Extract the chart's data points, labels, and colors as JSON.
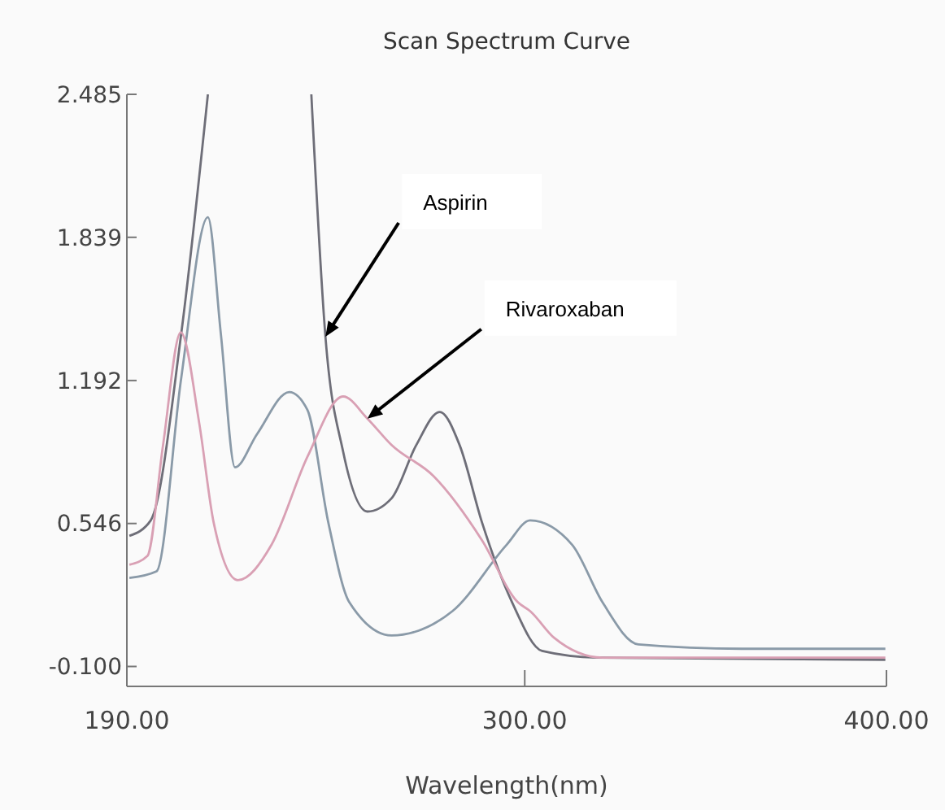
{
  "chart_data": {
    "type": "line",
    "title": "Scan Spectrum Curve",
    "xlabel": "Wavelength(nm)",
    "xlim": [
      190,
      400
    ],
    "xticks": [
      {
        "value": 190,
        "label": "190.00"
      },
      {
        "value": 300,
        "label": "300.00"
      },
      {
        "value": 400,
        "label": "400.00"
      }
    ],
    "ylim": [
      -0.19,
      2.485
    ],
    "yticks": [
      {
        "value": -0.1,
        "label": "-0.100"
      },
      0.546,
      1.192,
      1.839,
      2.485
    ],
    "grid": false,
    "marker": "none",
    "line_style": "solid",
    "series": [
      {
        "color": "#6e6e78",
        "x": [
          190.7,
          196.6,
          205,
          212.4,
          226,
          241.0,
          244.9,
          249.8,
          256.5,
          263.2,
          270,
          276.5,
          282,
          288.2,
          296.5,
          304.8,
          320,
          399.7
        ],
        "values": [
          0.49,
          0.56,
          1.4,
          2.485,
          null,
          2.485,
          1.39,
          0.87,
          0.6,
          0.66,
          0.9,
          1.05,
          0.9,
          0.55,
          0.19,
          -0.03,
          -0.06,
          -0.07
        ]
      },
      {
        "color": "#8a9aa8",
        "x": [
          190.7,
          198.2,
          205,
          212.4,
          216,
          219.9,
          226,
          234.9,
          239.9,
          245.7,
          251.5,
          263.2,
          280,
          295,
          301.5,
          313.1,
          321.5,
          331.4,
          360,
          399.7
        ],
        "values": [
          0.3,
          0.33,
          1.2,
          1.93,
          1.4,
          0.8,
          0.95,
          1.14,
          1.06,
          0.55,
          0.19,
          0.04,
          0.15,
          0.45,
          0.56,
          0.45,
          0.19,
          0.0,
          -0.02,
          -0.02
        ]
      },
      {
        "color": "#d9a0b4",
        "x": [
          190.7,
          195.7,
          200,
          204.9,
          210,
          214,
          220.7,
          230,
          240,
          249.8,
          256.5,
          263.2,
          274.8,
          288.2,
          298.1,
          301.5,
          308.1,
          321.5,
          361.5,
          399.7
        ],
        "values": [
          0.36,
          0.4,
          0.9,
          1.41,
          1.0,
          0.55,
          0.29,
          0.45,
          0.85,
          1.12,
          1.02,
          0.9,
          0.76,
          0.47,
          0.19,
          0.15,
          0.03,
          -0.06,
          -0.06,
          -0.06
        ]
      }
    ],
    "annotations": [
      {
        "text": "Aspirin",
        "x": 244.9,
        "y": 1.39
      },
      {
        "text": "Rivaroxaban",
        "x": 256.5,
        "y": 1.02
      }
    ]
  }
}
